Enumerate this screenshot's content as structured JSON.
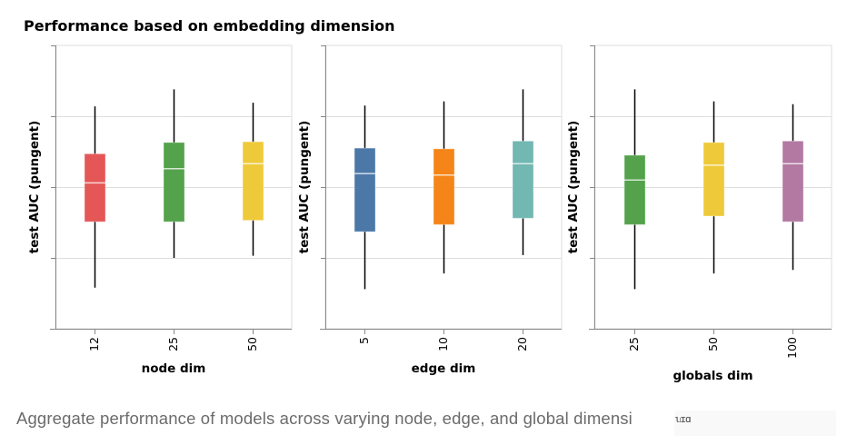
{
  "chart_data": {
    "type": "boxplot",
    "title": "Performance based on embedding dimension",
    "y_domain": [
      0,
      4
    ],
    "y_ticks": [
      0,
      1,
      2,
      3,
      4
    ],
    "y_tick_labels_visible": false,
    "grid": true,
    "panels": [
      {
        "xlabel": "node dim",
        "ylabel": "test AUC (pungent)",
        "categories": [
          "12",
          "25",
          "50"
        ],
        "colors": [
          "#e45756",
          "#54a24b",
          "#eeca3b"
        ],
        "boxes": [
          {
            "min": 0.58,
            "q1": 1.51,
            "median": 2.06,
            "q3": 2.47,
            "max": 3.14
          },
          {
            "min": 1.0,
            "q1": 1.51,
            "median": 2.26,
            "q3": 2.63,
            "max": 3.38
          },
          {
            "min": 1.03,
            "q1": 1.53,
            "median": 2.33,
            "q3": 2.64,
            "max": 3.19
          }
        ]
      },
      {
        "xlabel": "edge dim",
        "ylabel": "test AUC (pungent)",
        "categories": [
          "5",
          "10",
          "20"
        ],
        "colors": [
          "#4c78a8",
          "#f58518",
          "#72b7b2"
        ],
        "boxes": [
          {
            "min": 0.56,
            "q1": 1.37,
            "median": 2.19,
            "q3": 2.55,
            "max": 3.15
          },
          {
            "min": 0.78,
            "q1": 1.47,
            "median": 2.17,
            "q3": 2.54,
            "max": 3.21
          },
          {
            "min": 1.04,
            "q1": 1.56,
            "median": 2.33,
            "q3": 2.65,
            "max": 3.38
          }
        ]
      },
      {
        "xlabel": "globals dim",
        "ylabel": "test AUC (pungent)",
        "categories": [
          "25",
          "50",
          "100"
        ],
        "colors": [
          "#54a24b",
          "#eeca3b",
          "#b279a2"
        ],
        "boxes": [
          {
            "min": 0.56,
            "q1": 1.47,
            "median": 2.1,
            "q3": 2.45,
            "max": 3.38
          },
          {
            "min": 0.78,
            "q1": 1.59,
            "median": 2.31,
            "q3": 2.63,
            "max": 3.21
          },
          {
            "min": 0.83,
            "q1": 1.51,
            "median": 2.33,
            "q3": 2.65,
            "max": 3.17
          }
        ]
      }
    ]
  },
  "caption": {
    "text": "Aggregate performance of models across varying node, edge, and global dimensi",
    "garbled_tail": "ɩ၊ɪɑ"
  }
}
